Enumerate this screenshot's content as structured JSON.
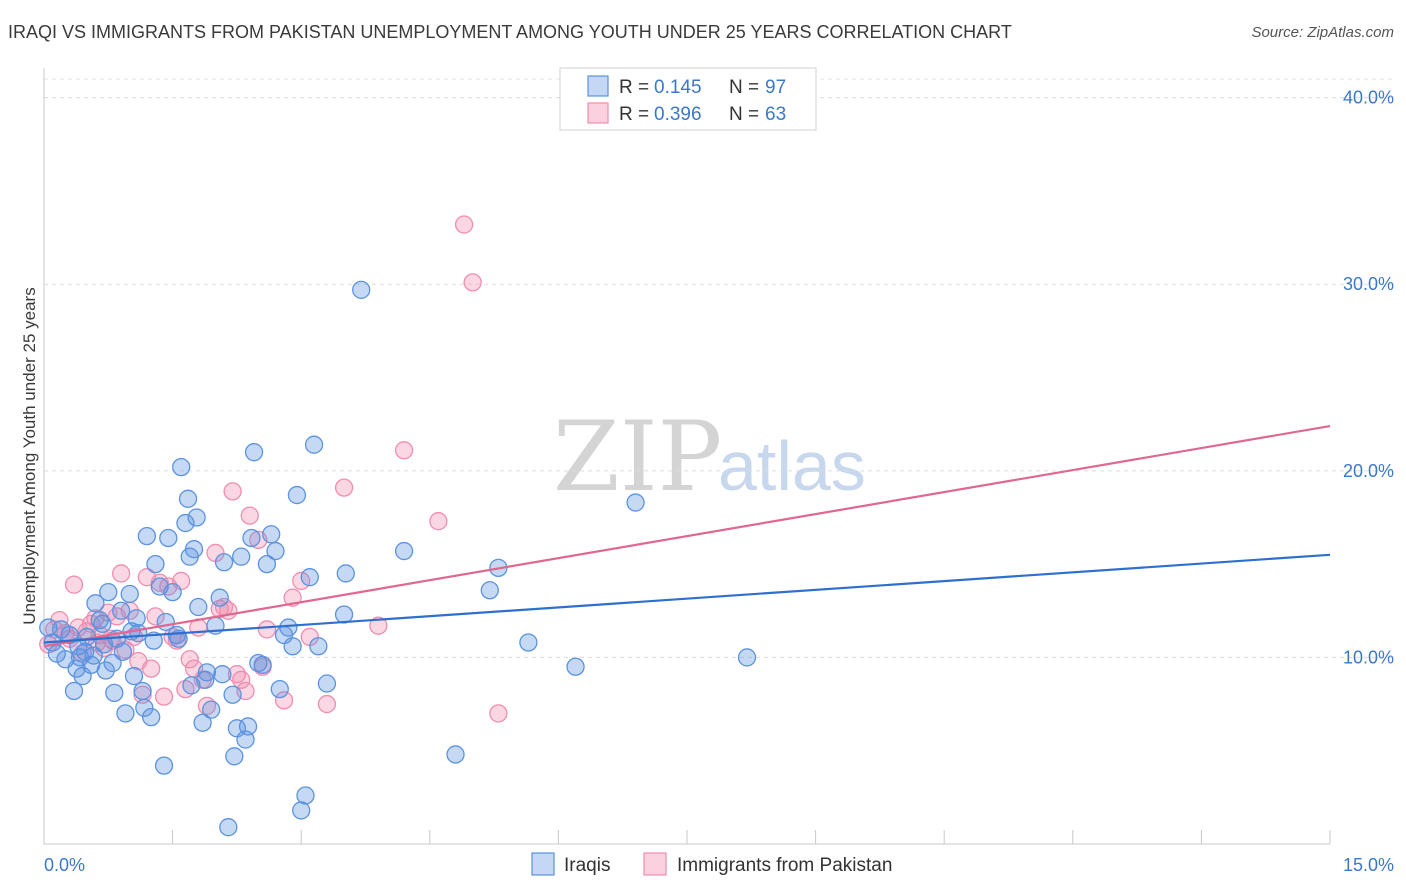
{
  "title": "IRAQI VS IMMIGRANTS FROM PAKISTAN UNEMPLOYMENT AMONG YOUTH UNDER 25 YEARS CORRELATION CHART",
  "source": "Source: ZipAtlas.com",
  "watermark": {
    "zip": "ZIP",
    "atlas": "atlas"
  },
  "colors": {
    "iraqi": "#5b93e0",
    "iraqi_line": "#2f6fce",
    "pakistan": "#f08db0",
    "pakistan_line": "#e0678f",
    "tick_text": "#3b78c9"
  },
  "legend": {
    "rows": [
      {
        "r_label": "R = ",
        "r_value": "0.145",
        "n_label": "N = ",
        "n_value": "97"
      },
      {
        "r_label": "R = ",
        "r_value": "0.396",
        "n_label": "N = ",
        "n_value": "63"
      }
    ]
  },
  "chart_data": {
    "type": "scatter",
    "xlabel": "",
    "ylabel": "Unemployment Among Youth under 25 years",
    "xlim": [
      0,
      15
    ],
    "ylim": [
      0,
      41
    ],
    "x_tick_labels": [
      "0.0%",
      "15.0%"
    ],
    "y_ticks": [
      10,
      20,
      30,
      40
    ],
    "y_tick_labels": [
      "10.0%",
      "20.0%",
      "30.0%",
      "40.0%"
    ],
    "grid": true,
    "legend_position": "top-center",
    "series": [
      {
        "name": "Iraqis",
        "trend": {
          "x0": 0,
          "y0": 10.8,
          "x1": 15,
          "y1": 15.5
        },
        "points": [
          [
            0.05,
            11.6
          ],
          [
            0.1,
            10.8
          ],
          [
            0.15,
            10.2
          ],
          [
            0.2,
            11.5
          ],
          [
            0.25,
            9.9
          ],
          [
            0.3,
            11.2
          ],
          [
            0.35,
            8.2
          ],
          [
            0.4,
            10.6
          ],
          [
            0.42,
            10.0
          ],
          [
            0.45,
            9.0
          ],
          [
            0.5,
            11.1
          ],
          [
            0.55,
            9.6
          ],
          [
            0.6,
            12.9
          ],
          [
            0.65,
            12.0
          ],
          [
            0.7,
            10.7
          ],
          [
            0.72,
            9.3
          ],
          [
            0.75,
            13.5
          ],
          [
            0.8,
            9.7
          ],
          [
            0.82,
            8.1
          ],
          [
            0.85,
            11.0
          ],
          [
            0.9,
            12.5
          ],
          [
            0.92,
            10.3
          ],
          [
            0.95,
            7.0
          ],
          [
            1.0,
            13.4
          ],
          [
            1.02,
            11.4
          ],
          [
            1.05,
            9.0
          ],
          [
            1.1,
            11.3
          ],
          [
            1.15,
            8.2
          ],
          [
            1.17,
            7.3
          ],
          [
            1.2,
            16.5
          ],
          [
            1.25,
            6.8
          ],
          [
            1.3,
            15.0
          ],
          [
            1.35,
            13.8
          ],
          [
            1.4,
            4.2
          ],
          [
            1.42,
            11.9
          ],
          [
            1.45,
            16.4
          ],
          [
            1.5,
            13.5
          ],
          [
            1.55,
            11.2
          ],
          [
            1.57,
            11.0
          ],
          [
            1.6,
            20.2
          ],
          [
            1.65,
            17.2
          ],
          [
            1.68,
            18.5
          ],
          [
            1.7,
            15.4
          ],
          [
            1.72,
            8.5
          ],
          [
            1.75,
            15.8
          ],
          [
            1.78,
            17.5
          ],
          [
            1.8,
            12.7
          ],
          [
            1.85,
            6.5
          ],
          [
            1.88,
            8.8
          ],
          [
            1.9,
            9.2
          ],
          [
            1.95,
            7.2
          ],
          [
            2.0,
            11.7
          ],
          [
            2.05,
            13.2
          ],
          [
            2.1,
            15.1
          ],
          [
            2.15,
            0.9
          ],
          [
            2.2,
            8.0
          ],
          [
            2.22,
            4.7
          ],
          [
            2.25,
            6.2
          ],
          [
            2.3,
            15.4
          ],
          [
            2.35,
            5.6
          ],
          [
            2.38,
            6.3
          ],
          [
            2.42,
            16.4
          ],
          [
            2.45,
            21.0
          ],
          [
            2.5,
            9.7
          ],
          [
            2.55,
            9.6
          ],
          [
            2.6,
            15.0
          ],
          [
            2.65,
            16.6
          ],
          [
            2.7,
            15.7
          ],
          [
            2.75,
            8.3
          ],
          [
            2.8,
            11.2
          ],
          [
            2.85,
            11.6
          ],
          [
            2.9,
            10.6
          ],
          [
            2.95,
            18.7
          ],
          [
            3.0,
            1.8
          ],
          [
            3.05,
            2.6
          ],
          [
            3.1,
            14.3
          ],
          [
            3.15,
            21.4
          ],
          [
            3.2,
            10.6
          ],
          [
            3.3,
            8.6
          ],
          [
            3.5,
            12.3
          ],
          [
            3.52,
            14.5
          ],
          [
            3.7,
            29.7
          ],
          [
            4.2,
            15.7
          ],
          [
            4.8,
            4.8
          ],
          [
            5.2,
            13.6
          ],
          [
            5.3,
            14.8
          ],
          [
            5.65,
            10.8
          ],
          [
            6.2,
            9.5
          ],
          [
            6.9,
            18.3
          ],
          [
            8.2,
            10.0
          ],
          [
            0.48,
            10.3
          ],
          [
            0.58,
            10.1
          ],
          [
            0.68,
            11.8
          ],
          [
            1.08,
            12.1
          ],
          [
            1.28,
            10.9
          ],
          [
            0.38,
            9.4
          ],
          [
            2.08,
            9.1
          ]
        ]
      },
      {
        "name": "Immigrants from Pakistan",
        "trend": {
          "x0": 0,
          "y0": 10.6,
          "x1": 15,
          "y1": 22.4
        },
        "points": [
          [
            0.05,
            10.7
          ],
          [
            0.12,
            11.5
          ],
          [
            0.18,
            12.0
          ],
          [
            0.25,
            11.3
          ],
          [
            0.3,
            11.0
          ],
          [
            0.35,
            13.9
          ],
          [
            0.4,
            11.6
          ],
          [
            0.45,
            10.2
          ],
          [
            0.5,
            11.4
          ],
          [
            0.55,
            11.8
          ],
          [
            0.6,
            12.1
          ],
          [
            0.62,
            10.8
          ],
          [
            0.65,
            11.2
          ],
          [
            0.7,
            10.5
          ],
          [
            0.75,
            12.4
          ],
          [
            0.78,
            11.0
          ],
          [
            0.8,
            10.9
          ],
          [
            0.85,
            12.2
          ],
          [
            0.9,
            14.5
          ],
          [
            0.95,
            10.4
          ],
          [
            1.0,
            12.5
          ],
          [
            1.05,
            11.1
          ],
          [
            1.1,
            9.8
          ],
          [
            1.15,
            8.0
          ],
          [
            1.2,
            14.3
          ],
          [
            1.25,
            9.4
          ],
          [
            1.3,
            12.2
          ],
          [
            1.35,
            14.0
          ],
          [
            1.4,
            7.9
          ],
          [
            1.45,
            13.8
          ],
          [
            1.5,
            11.1
          ],
          [
            1.55,
            10.9
          ],
          [
            1.6,
            14.1
          ],
          [
            1.65,
            8.3
          ],
          [
            1.7,
            9.9
          ],
          [
            1.75,
            9.4
          ],
          [
            1.8,
            11.6
          ],
          [
            1.85,
            8.8
          ],
          [
            1.9,
            7.4
          ],
          [
            2.0,
            15.6
          ],
          [
            2.05,
            12.6
          ],
          [
            2.1,
            12.7
          ],
          [
            2.15,
            12.5
          ],
          [
            2.2,
            18.9
          ],
          [
            2.25,
            9.1
          ],
          [
            2.3,
            8.8
          ],
          [
            2.35,
            8.2
          ],
          [
            2.4,
            17.6
          ],
          [
            2.5,
            16.3
          ],
          [
            2.55,
            9.5
          ],
          [
            2.6,
            11.5
          ],
          [
            2.8,
            7.7
          ],
          [
            2.9,
            13.2
          ],
          [
            3.0,
            14.1
          ],
          [
            3.1,
            11.1
          ],
          [
            3.3,
            7.5
          ],
          [
            3.5,
            19.1
          ],
          [
            3.9,
            11.7
          ],
          [
            4.2,
            21.1
          ],
          [
            4.6,
            17.3
          ],
          [
            4.9,
            33.2
          ],
          [
            5.0,
            30.1
          ],
          [
            5.3,
            7.0
          ]
        ]
      }
    ]
  },
  "bottom_legend": {
    "items": [
      {
        "label": "Iraqis"
      },
      {
        "label": "Immigrants from Pakistan"
      }
    ]
  }
}
